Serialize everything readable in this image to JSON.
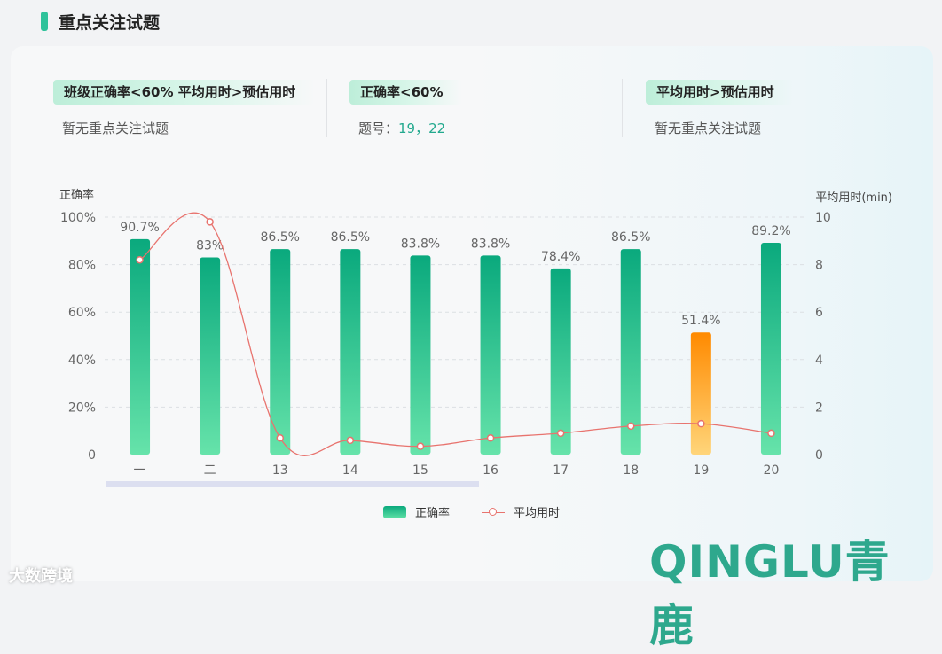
{
  "section": {
    "title": "重点关注试题"
  },
  "summary": [
    {
      "tag": "班级正确率<60%  平均用时>预估用时",
      "text": "暂无重点关注试题"
    },
    {
      "tag": "正确率<60%",
      "text_prefix": "题号：",
      "text_value": "19，22"
    },
    {
      "tag": "平均用时>预估用时",
      "text": "暂无重点关注试题"
    }
  ],
  "chart_data": {
    "type": "bar",
    "categories": [
      "一",
      "二",
      "13",
      "14",
      "15",
      "16",
      "17",
      "18",
      "19",
      "20"
    ],
    "series": [
      {
        "name": "正确率",
        "type": "bar",
        "values": [
          90.7,
          83,
          86.5,
          86.5,
          83.8,
          83.8,
          78.4,
          86.5,
          51.4,
          89.2
        ],
        "value_labels": [
          "90.7%",
          "83%",
          "86.5%",
          "86.5%",
          "83.8%",
          "83.8%",
          "78.4%",
          "86.5%",
          "51.4%",
          "89.2%"
        ],
        "highlight_index": 8,
        "highlight_color": "#ff8a00",
        "color": "#0aa97d"
      },
      {
        "name": "平均用时",
        "type": "line",
        "axis": "right",
        "values": [
          8.2,
          9.8,
          0.7,
          0.6,
          0.35,
          0.7,
          0.9,
          1.2,
          1.3,
          0.9
        ],
        "color": "#e8736e"
      }
    ],
    "ylabel": "正确率",
    "y2label": "平均用时(min)",
    "ylim": [
      0,
      100
    ],
    "y2lim": [
      0,
      10
    ],
    "yticks": [
      "0",
      "20%",
      "40%",
      "60%",
      "80%",
      "100%"
    ],
    "y2ticks": [
      "0",
      "2",
      "4",
      "6",
      "8",
      "10"
    ],
    "grid": true,
    "legend": "bottom-center"
  },
  "brand": {
    "logo": "QINGLU青鹿",
    "watermark": "大数跨境"
  }
}
